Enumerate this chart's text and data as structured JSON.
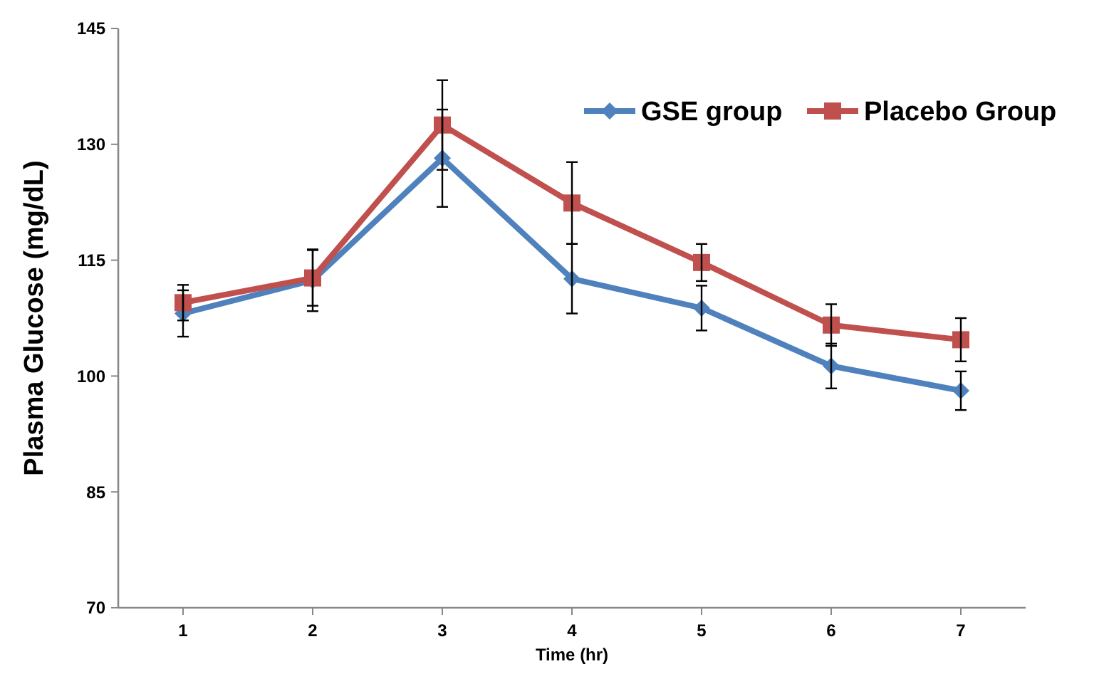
{
  "chart_data": {
    "type": "line",
    "xlabel": "Time (hr)",
    "ylabel": "Plasma Glucose (mg/dL)",
    "x": [
      1,
      2,
      3,
      4,
      5,
      6,
      7
    ],
    "xlim": [
      0.5,
      7.5
    ],
    "xticks": [
      1,
      2,
      3,
      4,
      5,
      6,
      7
    ],
    "ylim": [
      70,
      145
    ],
    "yticks": [
      70,
      85,
      100,
      115,
      130,
      145
    ],
    "series": [
      {
        "name": "GSE group",
        "color": "#4f81bd",
        "marker": "diamond",
        "values": [
          108.1,
          112.4,
          128.2,
          112.6,
          108.8,
          101.3,
          98.1
        ],
        "errors": [
          3,
          4,
          6.3,
          4.5,
          2.9,
          2.9,
          2.5
        ]
      },
      {
        "name": "Placebo Group",
        "color": "#c0504d",
        "marker": "square",
        "values": [
          109.5,
          112.7,
          132.5,
          122.4,
          114.7,
          106.6,
          104.7
        ],
        "errors": [
          2.3,
          3.6,
          5.8,
          5.3,
          2.4,
          2.7,
          2.8
        ]
      }
    ],
    "legend": "top right",
    "grid": false,
    "line_style": "solid"
  }
}
